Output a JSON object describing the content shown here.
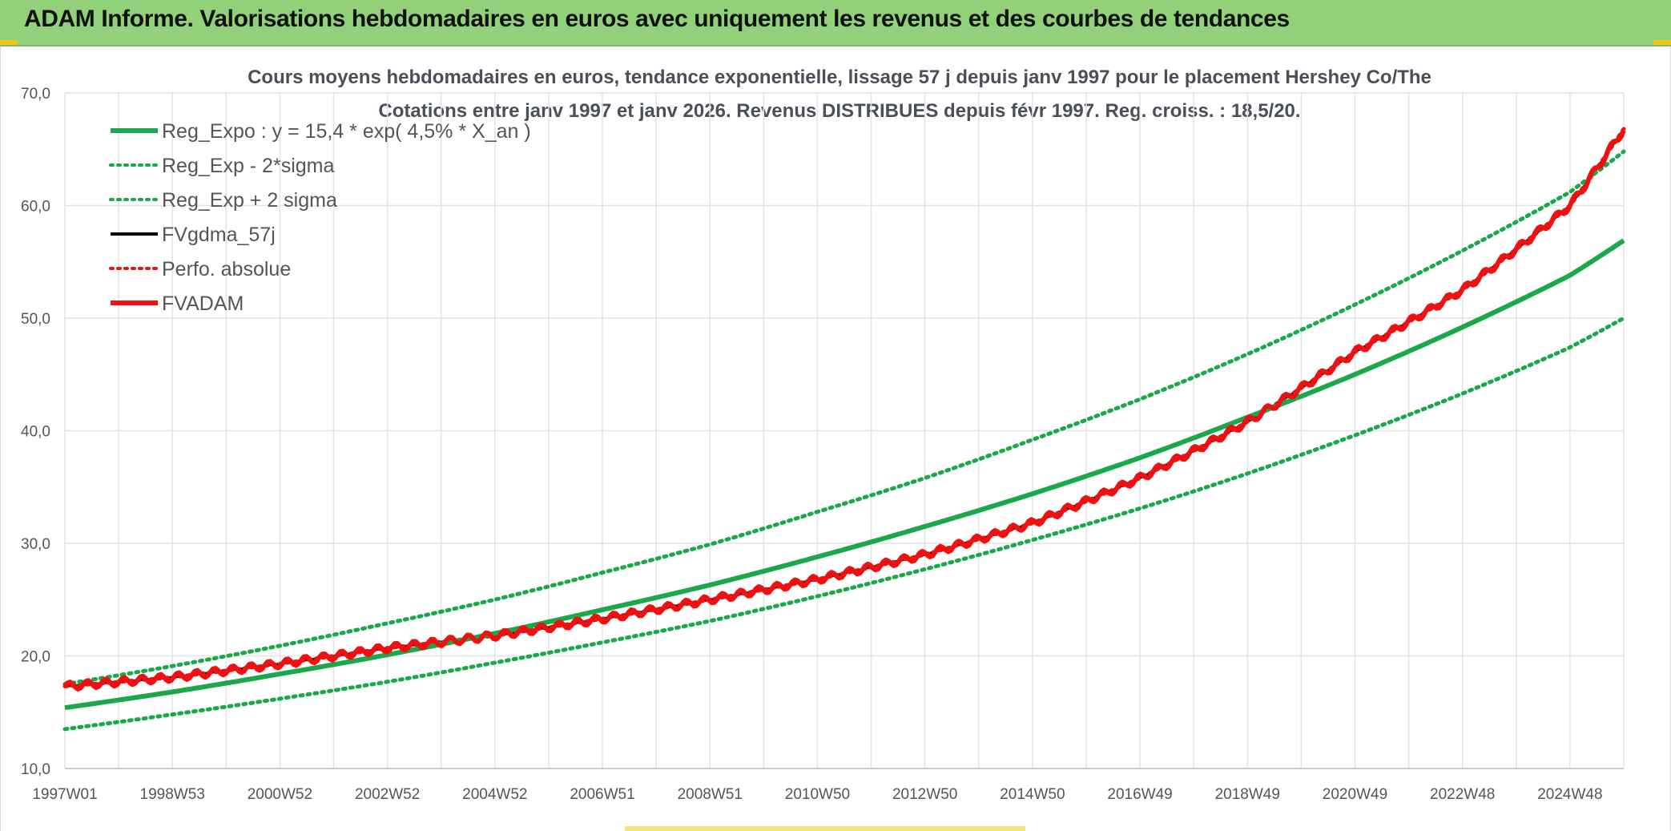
{
  "header": {
    "title": "ADAM Informe. Valorisations hebdomadaires en euros avec uniquement les revenus et des courbes de tendances"
  },
  "colors": {
    "header_bg": "#92d07a",
    "green": "#1aa84a",
    "red": "#ee1111",
    "black": "#000000",
    "grid": "#e3e3e3"
  },
  "chart_data": {
    "type": "line",
    "title": "Cours moyens hebdomadaires en euros, tendance exponentielle, lissage 57 j depuis janv 1997 pour le placement Hershey Co/The",
    "subtitle": "Cotations entre janv 1997 et janv 2026. Revenus DISTRIBUES depuis févr 1997. Reg. croiss. : 18,5/20.",
    "xlabel": "",
    "ylabel": "",
    "ylim": [
      10,
      70
    ],
    "yticks": [
      "70,0",
      "60,0",
      "50,0",
      "40,0",
      "30,0",
      "20,0",
      "10,0"
    ],
    "xlim": [
      1997.0,
      2026.0
    ],
    "xtick_labels": [
      "1997W01",
      "1998W53",
      "2000W52",
      "2002W52",
      "2004W52",
      "2006W51",
      "2008W51",
      "2010W50",
      "2012W50",
      "2014W50",
      "2016W49",
      "2018W49",
      "2020W49",
      "2022W48",
      "2024W48"
    ],
    "xtick_years": [
      1997.0,
      1999.0,
      2001.0,
      2003.0,
      2005.0,
      2007.0,
      2009.0,
      2011.0,
      2013.0,
      2015.0,
      2017.0,
      2019.0,
      2021.0,
      2023.0,
      2025.0
    ],
    "grid": true,
    "legend_position": "top-left",
    "series": [
      {
        "name": "Reg_Expo : y = 15,4 * exp( 4,5% *  X_an )",
        "style": "solid",
        "color": "#1aa84a",
        "x": [
          1997,
          1999,
          2001,
          2003,
          2005,
          2007,
          2009,
          2011,
          2013,
          2015,
          2017,
          2019,
          2021,
          2023,
          2025,
          2026
        ],
        "y": [
          15.4,
          16.8,
          18.4,
          20.1,
          22.0,
          24.1,
          26.3,
          28.8,
          31.5,
          34.4,
          37.6,
          41.2,
          45.0,
          49.2,
          53.8,
          56.9
        ]
      },
      {
        "name": "Reg_Exp - 2*sigma",
        "style": "dotted",
        "color": "#1aa84a",
        "x": [
          1997,
          1999,
          2001,
          2003,
          2005,
          2007,
          2009,
          2011,
          2013,
          2015,
          2017,
          2019,
          2021,
          2023,
          2025,
          2026
        ],
        "y": [
          13.5,
          14.8,
          16.2,
          17.7,
          19.4,
          21.2,
          23.1,
          25.3,
          27.7,
          30.3,
          33.1,
          36.2,
          39.6,
          43.3,
          47.4,
          50.0
        ]
      },
      {
        "name": "Reg_Exp + 2 sigma",
        "style": "dotted",
        "color": "#1aa84a",
        "x": [
          1997,
          1999,
          2001,
          2003,
          2005,
          2007,
          2009,
          2011,
          2013,
          2015,
          2017,
          2019,
          2021,
          2023,
          2025,
          2026
        ],
        "y": [
          17.5,
          19.1,
          20.9,
          22.9,
          25.0,
          27.4,
          29.9,
          32.8,
          35.8,
          39.2,
          42.8,
          46.8,
          51.2,
          56.0,
          61.2,
          64.8
        ]
      },
      {
        "name": "FVgdma_57j",
        "style": "solid",
        "color": "#000000",
        "x": [
          1997,
          1999,
          2001,
          2003,
          2005,
          2007,
          2009,
          2011,
          2013,
          2015,
          2017,
          2019,
          2020,
          2021,
          2023,
          2025,
          2026
        ],
        "y": [
          17.3,
          18.1,
          19.3,
          20.7,
          21.8,
          23.3,
          25.0,
          26.8,
          29.0,
          31.8,
          35.8,
          40.8,
          43.8,
          47.0,
          52.5,
          60.0,
          66.8
        ]
      },
      {
        "name": "Perfo. absolue",
        "style": "dotted",
        "color": "#ee1111",
        "x": [
          1997,
          1999,
          2001,
          2003,
          2005,
          2007,
          2009,
          2011,
          2013,
          2015,
          2017,
          2019,
          2020,
          2021,
          2023,
          2025,
          2026
        ],
        "y": [
          17.3,
          18.1,
          19.3,
          20.7,
          21.8,
          23.3,
          25.0,
          26.8,
          29.0,
          31.8,
          35.8,
          40.8,
          43.8,
          47.0,
          52.5,
          60.0,
          66.8
        ]
      },
      {
        "name": "FVADAM",
        "style": "solid",
        "color": "#ee1111",
        "x": [
          1997,
          1999,
          2001,
          2003,
          2005,
          2007,
          2009,
          2011,
          2013,
          2015,
          2017,
          2019,
          2020,
          2021,
          2023,
          2025,
          2026
        ],
        "y": [
          17.3,
          18.1,
          19.3,
          20.7,
          21.8,
          23.3,
          25.0,
          26.8,
          29.0,
          31.8,
          35.8,
          40.8,
          43.8,
          47.0,
          52.5,
          60.0,
          66.8
        ]
      }
    ]
  }
}
